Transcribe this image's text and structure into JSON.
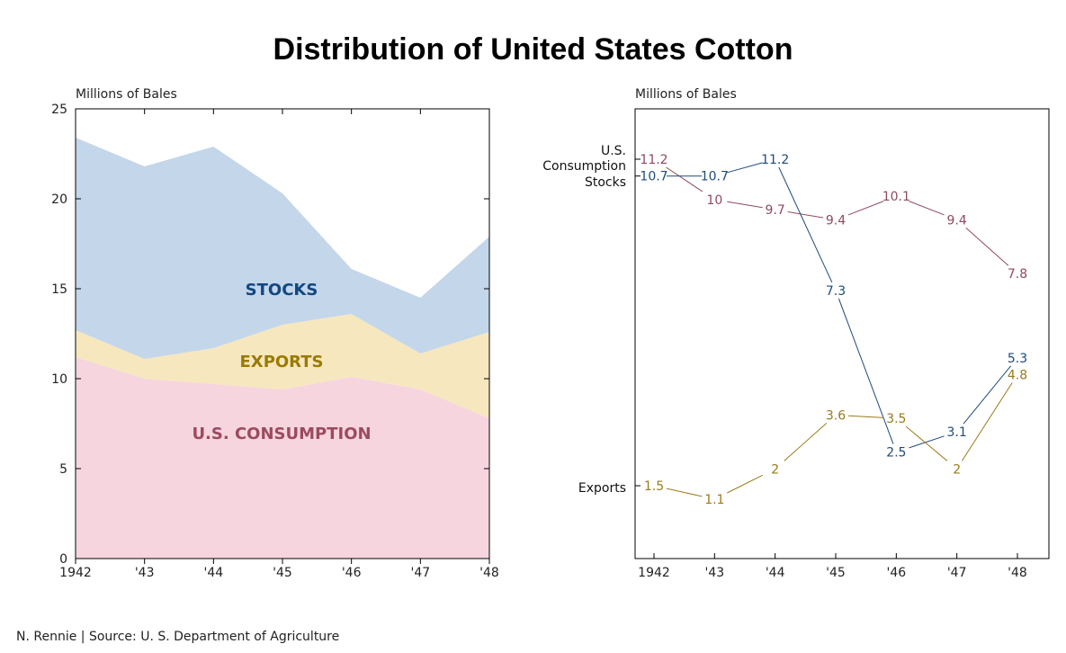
{
  "title": "Distribution of United States Cotton",
  "credit": "N. Rennie | Source: U. S. Department of Agriculture",
  "chart_data": [
    {
      "type": "area",
      "stacked": true,
      "ylabel": "Millions of Bales",
      "x": [
        "1942",
        "'43",
        "'44",
        "'45",
        "'46",
        "'47",
        "'48"
      ],
      "yticks": [
        0,
        5,
        10,
        15,
        20,
        25
      ],
      "ylim": [
        0,
        25
      ],
      "series": [
        {
          "name": "U.S. CONSUMPTION",
          "values": [
            11.2,
            10,
            9.7,
            9.4,
            10.1,
            9.4,
            7.8
          ],
          "color": "#f6d5df",
          "label_color": "#9c4a5e"
        },
        {
          "name": "EXPORTS",
          "values": [
            1.5,
            1.1,
            2,
            3.6,
            3.5,
            2,
            4.8
          ],
          "color": "#f6e7bf",
          "label_color": "#9a7a00"
        },
        {
          "name": "STOCKS",
          "values": [
            10.7,
            10.7,
            11.2,
            7.3,
            2.5,
            3.1,
            5.3
          ],
          "color": "#c3d6ea",
          "label_color": "#13477e"
        }
      ],
      "grid": false
    },
    {
      "type": "line",
      "ylabel": "Millions of Bales",
      "x": [
        "1942",
        "'43",
        "'44",
        "'45",
        "'46",
        "'47",
        "'48"
      ],
      "series": [
        {
          "name": "U.S. Consumption",
          "values": [
            11.2,
            10,
            9.7,
            9.4,
            10.1,
            9.4,
            7.8
          ],
          "color": "#8f4a5e"
        },
        {
          "name": "Stocks",
          "values": [
            10.7,
            10.7,
            11.2,
            7.3,
            2.5,
            3.1,
            5.3
          ],
          "color": "#1f4a7c"
        },
        {
          "name": "Exports",
          "values": [
            1.5,
            1.1,
            2,
            3.6,
            3.5,
            2,
            4.8
          ],
          "color": "#9a7a1a"
        }
      ],
      "labels": {
        "consumption": [
          "U.S.",
          "Consumption"
        ],
        "stocks": "Stocks",
        "exports": "Exports"
      },
      "grid": false
    }
  ]
}
